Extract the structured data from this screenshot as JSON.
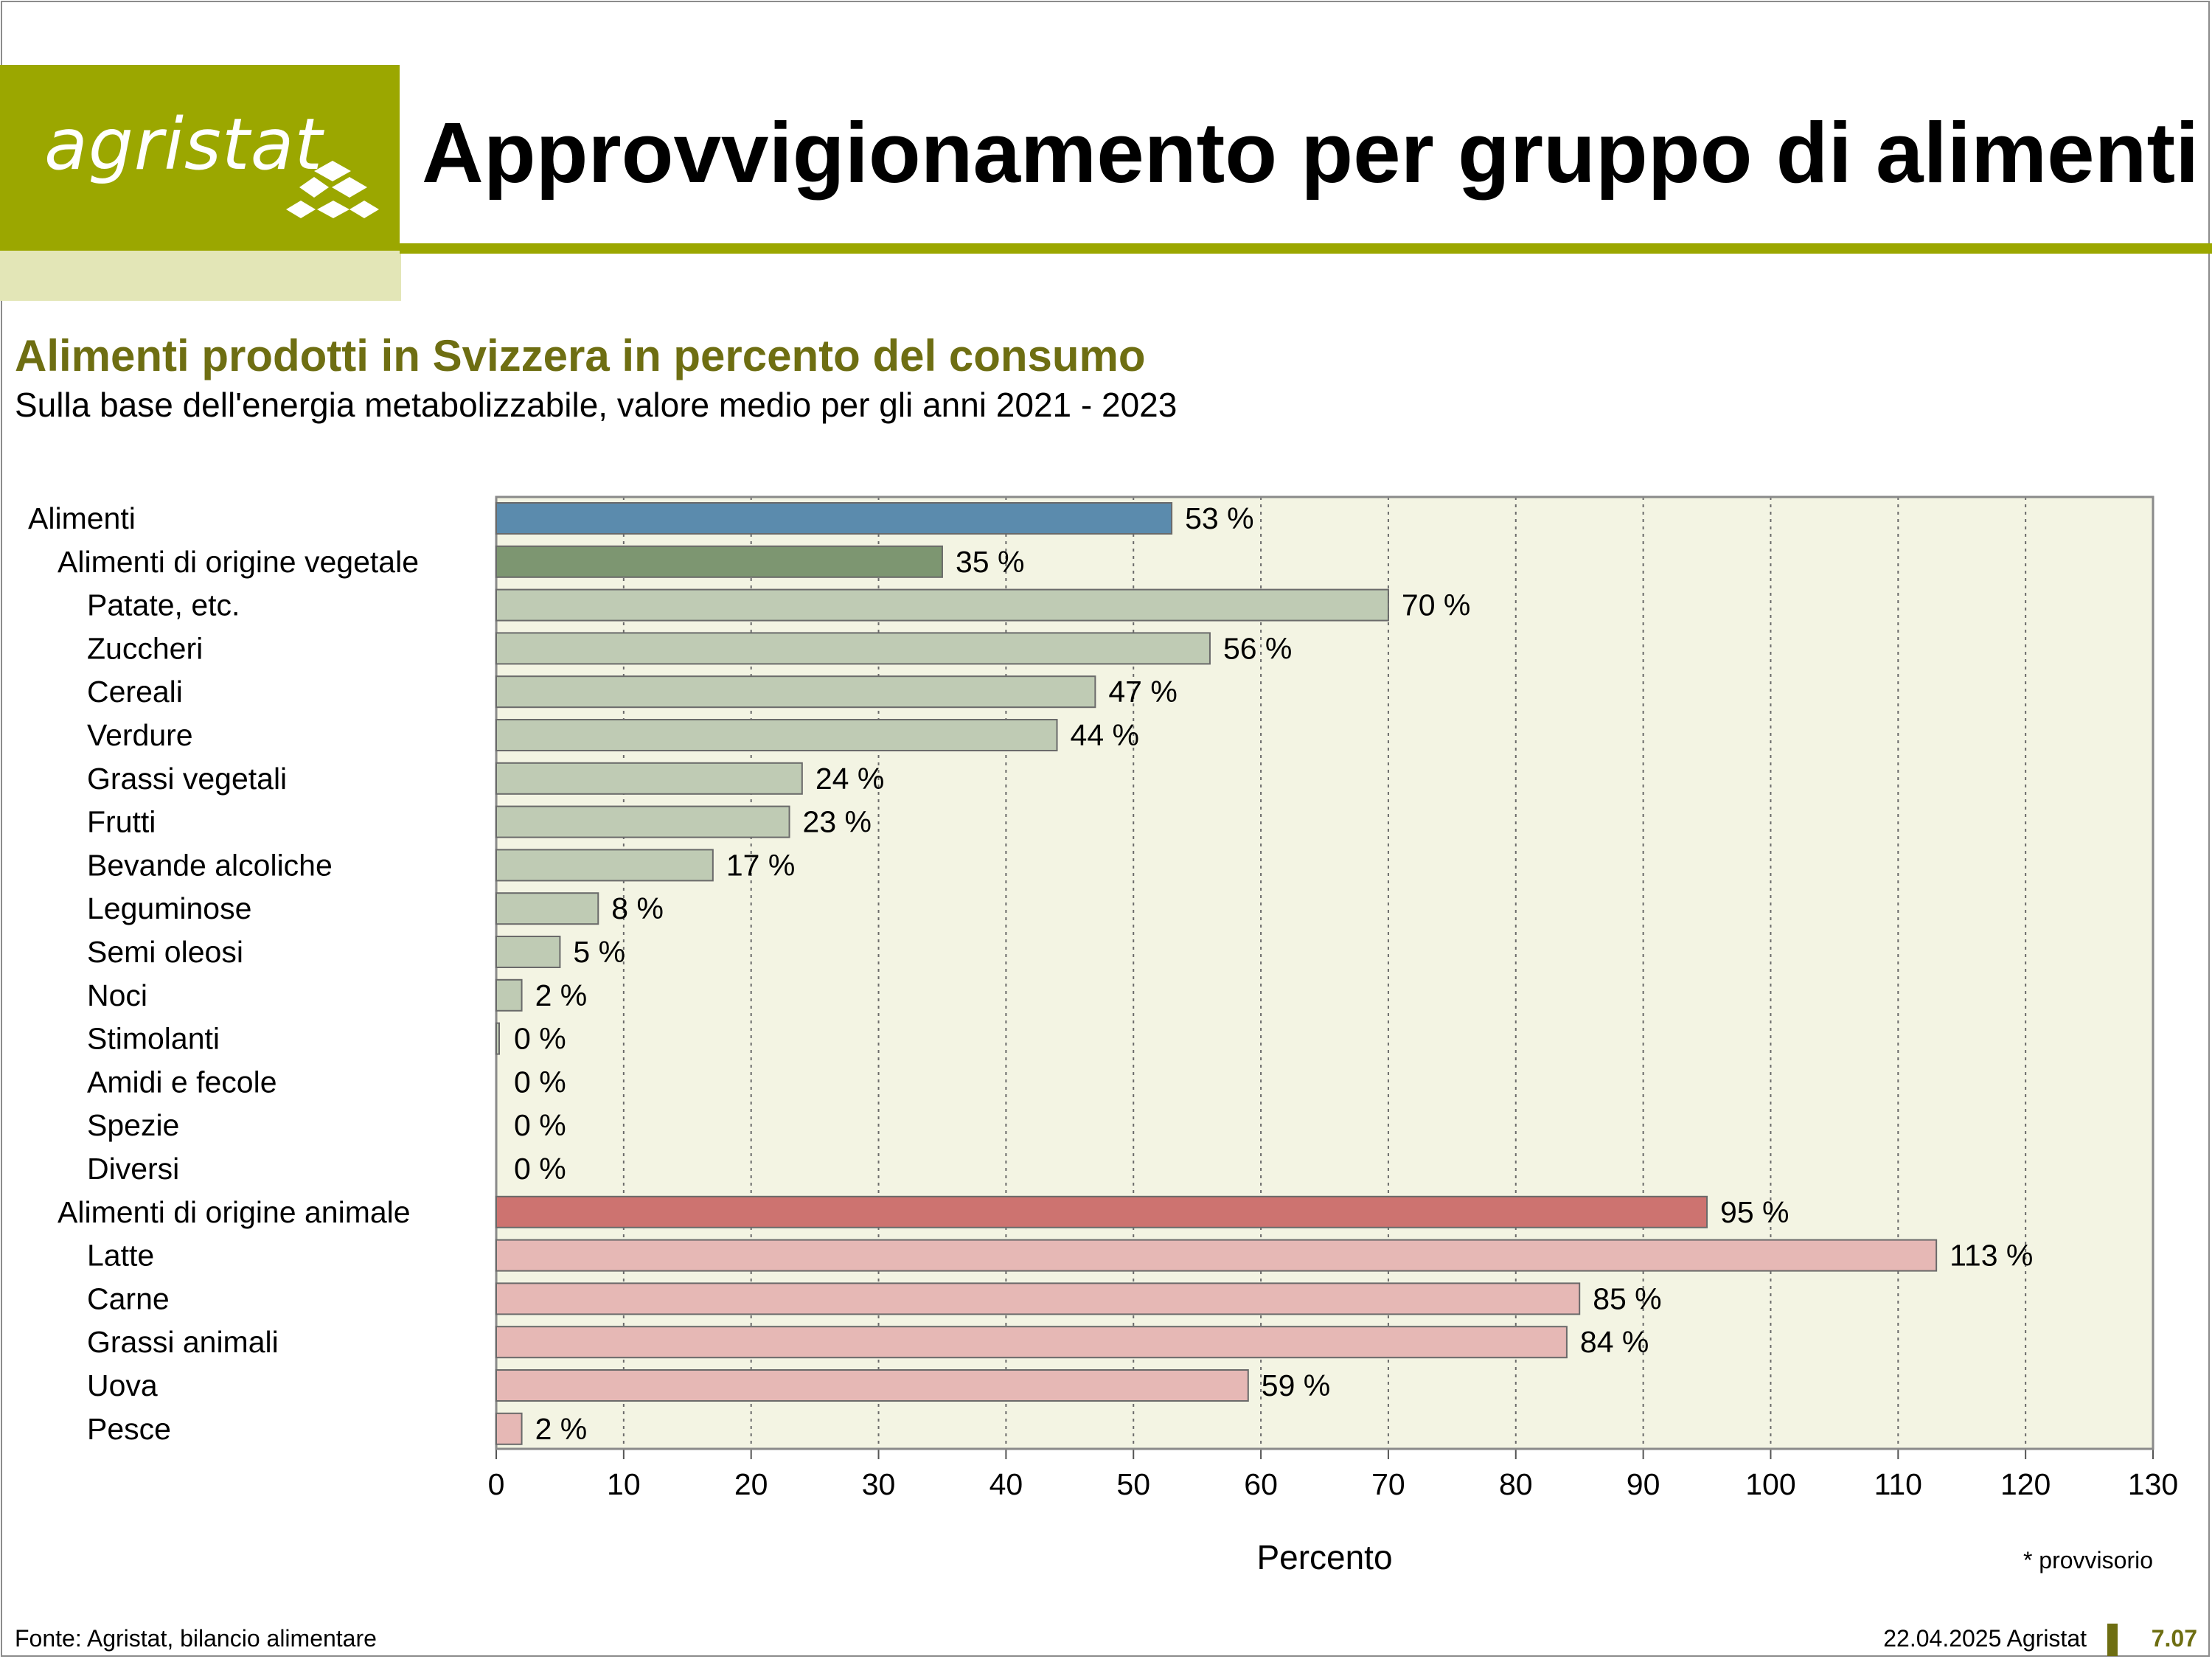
{
  "header": {
    "logo_text": "agristat",
    "title": "Approvvigionamento per gruppo di alimenti"
  },
  "colors": {
    "brand": "#9ba700",
    "brand_light": "#e3e6b7",
    "title_accent": "#6e6e12",
    "plot_background": "#f3f4e3"
  },
  "chart_data": {
    "type": "bar",
    "orientation": "horizontal",
    "title": "Alimenti prodotti in Svizzera in percento del consumo",
    "subtitle": "Sulla base dell'energia metabolizzabile, valore medio per gli anni 2021 - 2023",
    "xlabel": "Percento",
    "xlim": [
      0,
      130
    ],
    "xticks": [
      0,
      10,
      20,
      30,
      40,
      50,
      60,
      70,
      80,
      90,
      100,
      110,
      120,
      130
    ],
    "grid": "vertical dotted",
    "unit_suffix": " %",
    "categories": [
      {
        "label": "Alimenti",
        "value": 53,
        "level": 0,
        "color": "#5b8bad"
      },
      {
        "label": "Alimenti di origine vegetale",
        "value": 35,
        "level": 1,
        "color": "#7d9671"
      },
      {
        "label": "Patate, etc.",
        "value": 70,
        "level": 2,
        "color": "#bfcbb4"
      },
      {
        "label": "Zuccheri",
        "value": 56,
        "level": 2,
        "color": "#bfcbb4"
      },
      {
        "label": "Cereali",
        "value": 47,
        "level": 2,
        "color": "#bfcbb4"
      },
      {
        "label": "Verdure",
        "value": 44,
        "level": 2,
        "color": "#bfcbb4"
      },
      {
        "label": "Grassi vegetali",
        "value": 24,
        "level": 2,
        "color": "#bfcbb4"
      },
      {
        "label": "Frutti",
        "value": 23,
        "level": 2,
        "color": "#bfcbb4"
      },
      {
        "label": "Bevande alcoliche",
        "value": 17,
        "level": 2,
        "color": "#bfcbb4"
      },
      {
        "label": "Leguminose",
        "value": 8,
        "level": 2,
        "color": "#bfcbb4"
      },
      {
        "label": "Semi oleosi",
        "value": 5,
        "level": 2,
        "color": "#bfcbb4"
      },
      {
        "label": "Noci",
        "value": 2,
        "level": 2,
        "color": "#bfcbb4"
      },
      {
        "label": "Stimolanti",
        "value": 0,
        "level": 2,
        "color": "#bfcbb4"
      },
      {
        "label": "Amidi e fecole",
        "value": 0,
        "level": 2,
        "color": "#bfcbb4"
      },
      {
        "label": "Spezie",
        "value": 0,
        "level": 2,
        "color": "#bfcbb4"
      },
      {
        "label": "Diversi",
        "value": 0,
        "level": 2,
        "color": "#bfcbb4"
      },
      {
        "label": "Alimenti di origine animale",
        "value": 95,
        "level": 1,
        "color": "#cd7370"
      },
      {
        "label": "Latte",
        "value": 113,
        "level": 2,
        "color": "#e6b8b5"
      },
      {
        "label": "Carne",
        "value": 85,
        "level": 2,
        "color": "#e6b8b5"
      },
      {
        "label": "Grassi animali",
        "value": 84,
        "level": 2,
        "color": "#e6b8b5"
      },
      {
        "label": "Uova",
        "value": 59,
        "level": 2,
        "color": "#e6b8b5"
      },
      {
        "label": "Pesce",
        "value": 2,
        "level": 2,
        "color": "#e6b8b5"
      }
    ]
  },
  "footer": {
    "footnote": "* provvisorio",
    "source": "Fonte: Agristat, bilancio alimentare",
    "date": "22.04.2025 Agristat",
    "page_number": "7.07"
  }
}
